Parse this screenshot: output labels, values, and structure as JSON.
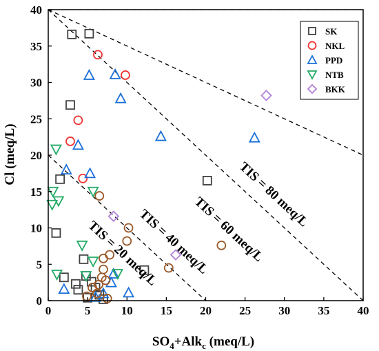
{
  "chart_data": {
    "type": "scatter",
    "xlabel": {
      "main": "SO",
      "sub1": "4",
      "mid": "+Alk",
      "sub2": "c",
      "tail": " (meq/L)"
    },
    "ylabel": "Cl (meq/L)",
    "xlim": [
      0,
      40
    ],
    "ylim": [
      0,
      40
    ],
    "x_ticks": [
      0,
      5,
      10,
      15,
      20,
      25,
      30,
      35,
      40
    ],
    "y_ticks": [
      0,
      5,
      10,
      15,
      20,
      25,
      30,
      35,
      40
    ],
    "grid": false,
    "legend_position": "top-right",
    "reference_lines": [
      {
        "label": "TIS = 20 meq/L",
        "total": 20
      },
      {
        "label": "TIS = 40 meq/L",
        "total": 40
      },
      {
        "label": "TIS = 60 meq/L",
        "total": 60
      },
      {
        "label": "TIS = 80 meq/L",
        "total": 80
      }
    ],
    "series": [
      {
        "name": "SK",
        "marker": "square",
        "color": "#404040",
        "points": [
          [
            3.0,
            36.6
          ],
          [
            5.2,
            36.7
          ],
          [
            2.8,
            26.9
          ],
          [
            20.2,
            16.5
          ],
          [
            1.5,
            16.7
          ],
          [
            1.0,
            9.3
          ],
          [
            12.2,
            4.2
          ],
          [
            2.0,
            3.2
          ],
          [
            4.5,
            5.7
          ],
          [
            4.8,
            3.4
          ],
          [
            3.5,
            2.3
          ],
          [
            5.5,
            2.6
          ],
          [
            6.0,
            1.8
          ],
          [
            3.8,
            1.5
          ],
          [
            6.5,
            0.8
          ],
          [
            5.0,
            0.4
          ],
          [
            7.0,
            0.2
          ]
        ]
      },
      {
        "name": "NKL",
        "marker": "circle",
        "color": "#ee3333",
        "points": [
          [
            6.3,
            33.8
          ],
          [
            9.8,
            31.0
          ],
          [
            3.8,
            24.8
          ],
          [
            2.8,
            21.9
          ],
          [
            4.4,
            16.8
          ]
        ]
      },
      {
        "name": "PPD",
        "marker": "triangle-up",
        "color": "#1a6fd8",
        "points": [
          [
            5.2,
            31.0
          ],
          [
            8.5,
            31.1
          ],
          [
            9.2,
            27.8
          ],
          [
            14.3,
            22.6
          ],
          [
            26.2,
            22.4
          ],
          [
            3.8,
            21.4
          ],
          [
            2.3,
            18.0
          ],
          [
            5.3,
            17.5
          ],
          [
            8.3,
            3.7
          ],
          [
            8.0,
            2.5
          ],
          [
            2.0,
            1.6
          ],
          [
            10.2,
            1.1
          ],
          [
            7.0,
            1.0
          ],
          [
            6.0,
            0.5
          ]
        ]
      },
      {
        "name": "NTB",
        "marker": "triangle-down",
        "color": "#22aa66",
        "points": [
          [
            1.0,
            20.8
          ],
          [
            0.6,
            15.0
          ],
          [
            5.7,
            15.0
          ],
          [
            0.5,
            13.2
          ],
          [
            1.3,
            13.7
          ],
          [
            4.3,
            7.6
          ],
          [
            5.7,
            5.4
          ],
          [
            1.1,
            3.6
          ],
          [
            4.8,
            3.4
          ],
          [
            8.8,
            3.7
          ]
        ]
      },
      {
        "name": "BKK",
        "marker": "diamond",
        "color": "#b07fd8",
        "points": [
          [
            27.7,
            28.2
          ],
          [
            8.3,
            11.6
          ],
          [
            16.2,
            6.3
          ]
        ]
      },
      {
        "name": "",
        "marker": "circle",
        "color": "#9b5a2a",
        "points": [
          [
            6.5,
            14.4
          ],
          [
            10.2,
            10.0
          ],
          [
            10.0,
            8.2
          ],
          [
            22.0,
            7.6
          ],
          [
            15.3,
            4.5
          ],
          [
            7.8,
            6.3
          ],
          [
            7.0,
            5.8
          ],
          [
            7.0,
            4.3
          ],
          [
            6.8,
            3.2
          ],
          [
            6.4,
            2.2
          ],
          [
            7.3,
            2.8
          ],
          [
            5.6,
            1.8
          ],
          [
            6.2,
            1.0
          ],
          [
            4.9,
            0.6
          ],
          [
            7.5,
            0.3
          ]
        ]
      }
    ],
    "tis_label_positions": [
      {
        "text": "TIS = 20 meq/L",
        "x": 5.0,
        "y": 10.2
      },
      {
        "text": "TIS = 40 meq/L",
        "x": 11.5,
        "y": 11.8
      },
      {
        "text": "TIS = 60 meq/L",
        "x": 18.5,
        "y": 13.5
      },
      {
        "text": "TIS = 80 meq/L",
        "x": 24.2,
        "y": 18.3
      }
    ]
  }
}
